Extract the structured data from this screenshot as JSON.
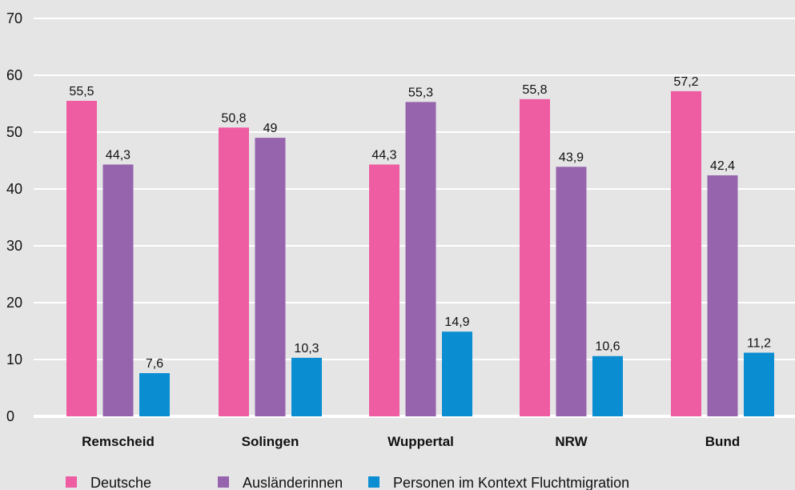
{
  "chart_data": {
    "type": "bar",
    "categories": [
      "Remscheid",
      "Solingen",
      "Wuppertal",
      "NRW",
      "Bund"
    ],
    "series": [
      {
        "name": "Deutsche",
        "color": "#ee5ca1",
        "values": [
          55.5,
          50.8,
          44.3,
          55.8,
          57.2
        ],
        "labels": [
          "55,5",
          "50,8",
          "44,3",
          "55,8",
          "57,2"
        ]
      },
      {
        "name": "Ausländerinnen",
        "color": "#9664ad",
        "values": [
          44.3,
          49,
          55.3,
          43.9,
          42.4
        ],
        "labels": [
          "44,3",
          "49",
          "55,3",
          "43,9",
          "42,4"
        ]
      },
      {
        "name": "Personen im Kontext Fluchtmigration",
        "color": "#0b8dd2",
        "values": [
          7.6,
          10.3,
          14.9,
          10.6,
          11.2
        ],
        "labels": [
          "7,6",
          "10,3",
          "14,9",
          "10,6",
          "11,2"
        ]
      }
    ],
    "ylim": [
      0,
      70
    ],
    "yticks": [
      0,
      10,
      20,
      30,
      40,
      50,
      60,
      70
    ],
    "grid": true,
    "legend_position": "bottom"
  }
}
